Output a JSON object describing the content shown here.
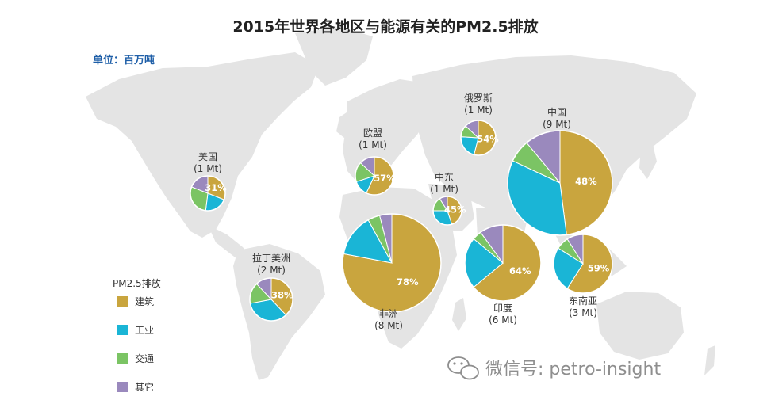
{
  "colors": {
    "建筑": "#c9a53e",
    "工业": "#1ab5d6",
    "交通": "#7bc464",
    "其它": "#9a89bd",
    "map": "#e4e4e4",
    "pie_border": "#ffffff"
  },
  "header": {
    "title": "2015年世界各地区与能源有关的PM2.5排放",
    "unit": "单位：百万吨"
  },
  "legend": {
    "title": "PM2.5排放",
    "items": [
      "建筑",
      "工业",
      "交通",
      "其它"
    ]
  },
  "watermark": "微信号: petro-insight",
  "chart_data": {
    "type": "pie",
    "title": "2015年世界各地区与能源有关的PM2.5排放",
    "unit": "单位：百万吨",
    "categories": [
      "建筑",
      "工业",
      "交通",
      "其它"
    ],
    "regions": [
      {
        "name": "美国",
        "total": "(1 Mt)",
        "total_mt": 1,
        "shares": [
          31,
          21,
          29,
          19
        ],
        "label": "31%"
      },
      {
        "name": "拉丁美洲",
        "total": "(2 Mt)",
        "total_mt": 2,
        "shares": [
          38,
          34,
          16,
          12
        ],
        "label": "38%"
      },
      {
        "name": "欧盟",
        "total": "(1 Mt)",
        "total_mt": 1,
        "shares": [
          57,
          13,
          17,
          13
        ],
        "label": "57%"
      },
      {
        "name": "俄罗斯",
        "total": "(1 Mt)",
        "total_mt": 1,
        "shares": [
          54,
          22,
          11,
          13
        ],
        "label": "54%"
      },
      {
        "name": "中东",
        "total": "(1 Mt)",
        "total_mt": 1,
        "shares": [
          45,
          30,
          16,
          9
        ],
        "label": "45%"
      },
      {
        "name": "非洲",
        "total": "(8 Mt)",
        "total_mt": 8,
        "shares": [
          78,
          14,
          4,
          4
        ],
        "label": "78%"
      },
      {
        "name": "印度",
        "total": "(6 Mt)",
        "total_mt": 6,
        "shares": [
          64,
          22,
          4,
          10
        ],
        "label": "64%"
      },
      {
        "name": "中国",
        "total": "(9 Mt)",
        "total_mt": 9,
        "shares": [
          48,
          34,
          7,
          11
        ],
        "label": "48%"
      },
      {
        "name": "东南亚",
        "total": "(3 Mt)",
        "total_mt": 3,
        "shares": [
          59,
          25,
          7,
          9
        ],
        "label": "59%"
      }
    ]
  }
}
